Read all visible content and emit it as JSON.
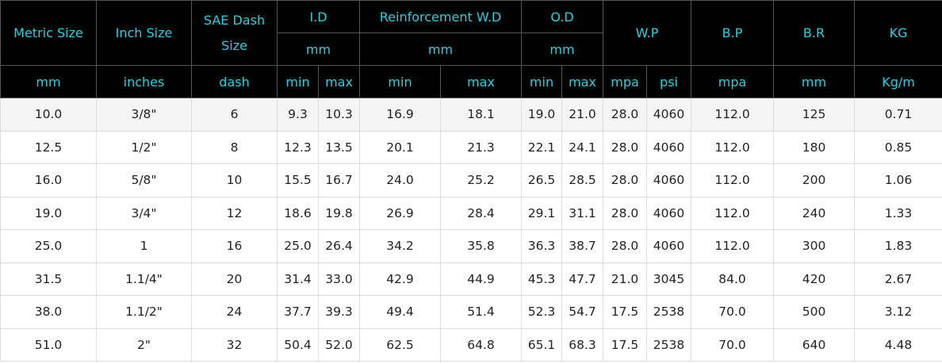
{
  "header": {
    "top": [
      "Metric Size",
      "Inch Size",
      "SAE Dash Size",
      "I.D",
      "Reinforcement W.D",
      "O.D",
      "W.P",
      "B.P",
      "B.R",
      "KG"
    ],
    "sub": [
      "mm",
      "mm",
      "mm"
    ],
    "units": [
      "mm",
      "inches",
      "dash",
      "min",
      "max",
      "min",
      "max",
      "min",
      "max",
      "mpa",
      "psi",
      "mpa",
      "mm",
      "Kg/m"
    ]
  },
  "table": {
    "rows": [
      [
        "10.0",
        "3/8\"",
        "6",
        "9.3",
        "10.3",
        "16.9",
        "18.1",
        "19.0",
        "21.0",
        "28.0",
        "4060",
        "112.0",
        "125",
        "0.71"
      ],
      [
        "12.5",
        "1/2\"",
        "8",
        "12.3",
        "13.5",
        "20.1",
        "21.3",
        "22.1",
        "24.1",
        "28.0",
        "4060",
        "112.0",
        "180",
        "0.85"
      ],
      [
        "16.0",
        "5/8\"",
        "10",
        "15.5",
        "16.7",
        "24.0",
        "25.2",
        "26.5",
        "28.5",
        "28.0",
        "4060",
        "112.0",
        "200",
        "1.06"
      ],
      [
        "19.0",
        "3/4\"",
        "12",
        "18.6",
        "19.8",
        "26.9",
        "28.4",
        "29.1",
        "31.1",
        "28.0",
        "4060",
        "112.0",
        "240",
        "1.33"
      ],
      [
        "25.0",
        "1",
        "16",
        "25.0",
        "26.4",
        "34.2",
        "35.8",
        "36.3",
        "38.7",
        "28.0",
        "4060",
        "112.0",
        "300",
        "1.83"
      ],
      [
        "31.5",
        "1.1/4\"",
        "20",
        "31.4",
        "33.0",
        "42.9",
        "44.9",
        "45.3",
        "47.7",
        "21.0",
        "3045",
        "84.0",
        "420",
        "2.67"
      ],
      [
        "38.0",
        "1.1/2\"",
        "24",
        "37.7",
        "39.3",
        "49.4",
        "51.4",
        "52.3",
        "54.7",
        "17.5",
        "2538",
        "70.0",
        "500",
        "3.12"
      ],
      [
        "51.0",
        "2\"",
        "32",
        "50.4",
        "52.0",
        "62.5",
        "64.8",
        "65.1",
        "68.3",
        "17.5",
        "2538",
        "70.0",
        "640",
        "4.48"
      ]
    ]
  }
}
